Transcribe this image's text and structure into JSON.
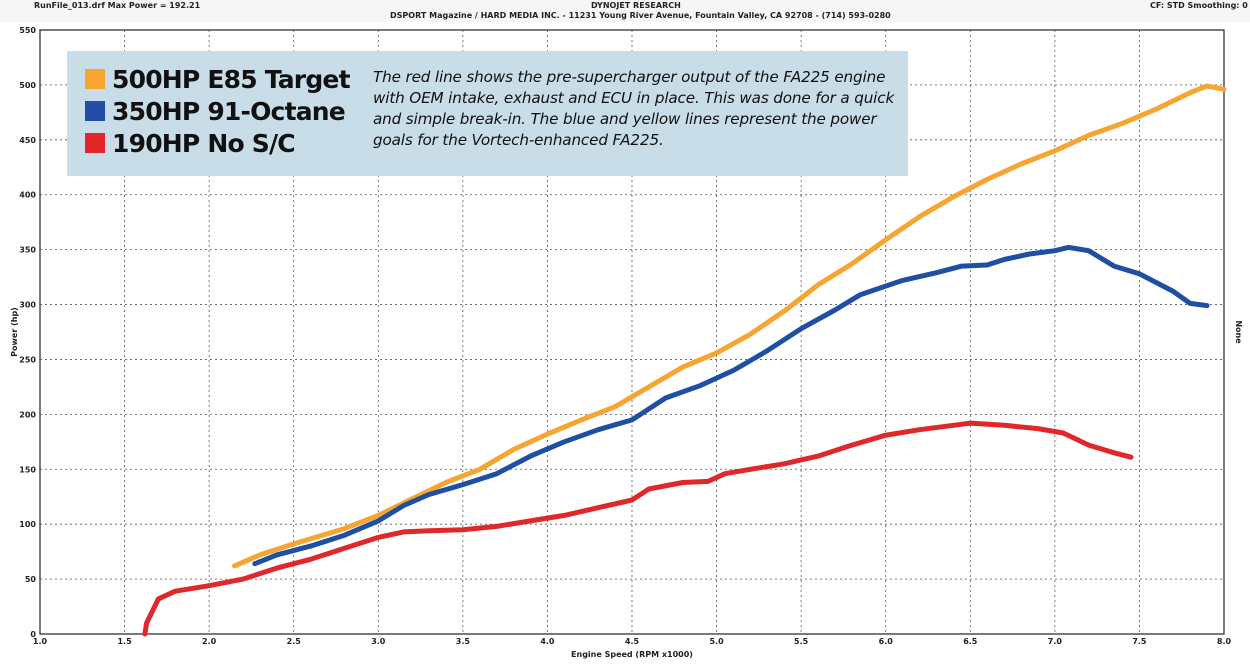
{
  "header": {
    "file_info": "RunFile_013.drf Max Power = 192.21",
    "company": "DYNOJET RESEARCH",
    "address": "DSPORT Magazine / HARD MEDIA INC. - 11231 Young River Avenue, Fountain Valley, CA 92708 - (714) 593-0280",
    "settings": "CF: STD  Smoothing: 0"
  },
  "legend": {
    "items": [
      {
        "label": "500HP E85 Target",
        "color": "#f6a533"
      },
      {
        "label": "350HP 91-Octane",
        "color": "#1f4fa3"
      },
      {
        "label": "190HP No S/C",
        "color": "#e0272a"
      }
    ],
    "caption": "The red line shows the pre-supercharger output of the FA225 engine with OEM intake, exhaust and ECU in place. This was done for a quick and simple break-in. The blue and yellow lines represent the power goals for the Vortech-enhanced FA225."
  },
  "chart_data": {
    "type": "line",
    "xlabel": "Engine Speed (RPM x1000)",
    "ylabel": "Power (hp)",
    "right_label": "None",
    "xlim": [
      1.0,
      8.0
    ],
    "ylim": [
      0,
      550
    ],
    "x_ticks": [
      "1.0",
      "1.5",
      "2.0",
      "2.5",
      "3.0",
      "3.5",
      "4.0",
      "4.5",
      "5.0",
      "5.5",
      "6.0",
      "6.5",
      "7.0",
      "7.5",
      "8.0"
    ],
    "y_ticks": [
      "0",
      "50",
      "100",
      "150",
      "200",
      "250",
      "300",
      "350",
      "400",
      "450",
      "500",
      "550"
    ],
    "grid": true,
    "series": [
      {
        "name": "500HP E85 Target",
        "color": "#f6a533",
        "points": [
          [
            2.15,
            62
          ],
          [
            2.3,
            72
          ],
          [
            2.5,
            82
          ],
          [
            2.8,
            96
          ],
          [
            3.0,
            108
          ],
          [
            3.2,
            123
          ],
          [
            3.4,
            138
          ],
          [
            3.6,
            150
          ],
          [
            3.8,
            168
          ],
          [
            4.0,
            182
          ],
          [
            4.2,
            195
          ],
          [
            4.4,
            207
          ],
          [
            4.6,
            225
          ],
          [
            4.8,
            243
          ],
          [
            5.0,
            256
          ],
          [
            5.2,
            273
          ],
          [
            5.4,
            294
          ],
          [
            5.6,
            318
          ],
          [
            5.8,
            337
          ],
          [
            6.0,
            359
          ],
          [
            6.2,
            380
          ],
          [
            6.4,
            398
          ],
          [
            6.6,
            414
          ],
          [
            6.8,
            428
          ],
          [
            7.0,
            440
          ],
          [
            7.2,
            454
          ],
          [
            7.4,
            465
          ],
          [
            7.6,
            478
          ],
          [
            7.8,
            493
          ],
          [
            7.9,
            499
          ],
          [
            8.0,
            496
          ]
        ]
      },
      {
        "name": "350HP 91-Octane",
        "color": "#1f4fa3",
        "points": [
          [
            2.27,
            64
          ],
          [
            2.4,
            72
          ],
          [
            2.6,
            80
          ],
          [
            2.8,
            90
          ],
          [
            3.0,
            103
          ],
          [
            3.15,
            117
          ],
          [
            3.3,
            127
          ],
          [
            3.5,
            136
          ],
          [
            3.7,
            146
          ],
          [
            3.9,
            162
          ],
          [
            4.1,
            175
          ],
          [
            4.3,
            186
          ],
          [
            4.5,
            195
          ],
          [
            4.7,
            215
          ],
          [
            4.9,
            226
          ],
          [
            5.1,
            240
          ],
          [
            5.3,
            258
          ],
          [
            5.5,
            278
          ],
          [
            5.7,
            295
          ],
          [
            5.85,
            309
          ],
          [
            6.1,
            322
          ],
          [
            6.3,
            329
          ],
          [
            6.45,
            335
          ],
          [
            6.6,
            336
          ],
          [
            6.7,
            341
          ],
          [
            6.85,
            346
          ],
          [
            7.0,
            349
          ],
          [
            7.08,
            352
          ],
          [
            7.2,
            349
          ],
          [
            7.35,
            335
          ],
          [
            7.5,
            328
          ],
          [
            7.7,
            312
          ],
          [
            7.8,
            301
          ],
          [
            7.9,
            299
          ]
        ]
      },
      {
        "name": "190HP No S/C",
        "color": "#e0272a",
        "points": [
          [
            1.62,
            0
          ],
          [
            1.63,
            10
          ],
          [
            1.7,
            32
          ],
          [
            1.8,
            39
          ],
          [
            2.0,
            44
          ],
          [
            2.2,
            50
          ],
          [
            2.4,
            60
          ],
          [
            2.6,
            68
          ],
          [
            2.8,
            78
          ],
          [
            3.0,
            88
          ],
          [
            3.15,
            93
          ],
          [
            3.3,
            94
          ],
          [
            3.5,
            95
          ],
          [
            3.7,
            98
          ],
          [
            3.9,
            103
          ],
          [
            4.1,
            108
          ],
          [
            4.3,
            115
          ],
          [
            4.5,
            122
          ],
          [
            4.6,
            132
          ],
          [
            4.8,
            138
          ],
          [
            4.95,
            139
          ],
          [
            5.05,
            146
          ],
          [
            5.2,
            150
          ],
          [
            5.4,
            155
          ],
          [
            5.6,
            162
          ],
          [
            5.8,
            172
          ],
          [
            6.0,
            181
          ],
          [
            6.2,
            186
          ],
          [
            6.4,
            190
          ],
          [
            6.5,
            192
          ],
          [
            6.7,
            190
          ],
          [
            6.9,
            187
          ],
          [
            7.05,
            183
          ],
          [
            7.2,
            172
          ],
          [
            7.35,
            165
          ],
          [
            7.45,
            161
          ]
        ]
      }
    ]
  }
}
